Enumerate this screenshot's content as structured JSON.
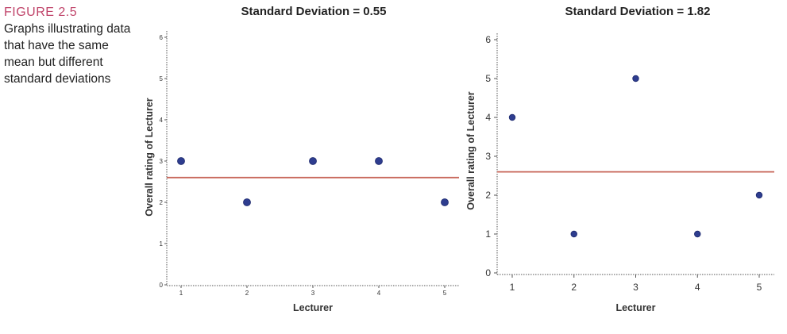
{
  "caption": {
    "label": "FIGURE 2.5",
    "text": "Graphs illustrating data that have the same mean but different standard deviations"
  },
  "colors": {
    "point": "#2e3d8f",
    "mean_line": "#c8675a",
    "caption_label": "#c0446a"
  },
  "chart_data": [
    {
      "type": "scatter",
      "title": "Standard Deviation = 0.55",
      "xlabel": "Lecturer",
      "ylabel": "Overall rating of Lecturer",
      "x_ticks": [
        "1",
        "2",
        "3",
        "4",
        "5"
      ],
      "y_ticks": [
        "0",
        "1",
        "2",
        "3",
        "4",
        "5",
        "6"
      ],
      "xlim": [
        1,
        5
      ],
      "ylim": [
        0,
        6
      ],
      "points": [
        {
          "x": 1,
          "y": 3
        },
        {
          "x": 2,
          "y": 2
        },
        {
          "x": 3,
          "y": 3
        },
        {
          "x": 4,
          "y": 3
        },
        {
          "x": 5,
          "y": 2
        }
      ],
      "mean_line": 2.6,
      "grid": false
    },
    {
      "type": "scatter",
      "title": "Standard Deviation = 1.82",
      "xlabel": "Lecturer",
      "ylabel": "Overall rating of Lecturer",
      "x_ticks": [
        "1",
        "2",
        "3",
        "4",
        "5"
      ],
      "y_ticks": [
        "0",
        "1",
        "2",
        "3",
        "4",
        "5",
        "6"
      ],
      "xlim": [
        1,
        5
      ],
      "ylim": [
        0,
        6
      ],
      "points": [
        {
          "x": 1,
          "y": 4
        },
        {
          "x": 2,
          "y": 1
        },
        {
          "x": 3,
          "y": 5
        },
        {
          "x": 4,
          "y": 1
        },
        {
          "x": 5,
          "y": 2
        }
      ],
      "mean_line": 2.6,
      "grid": false
    }
  ]
}
